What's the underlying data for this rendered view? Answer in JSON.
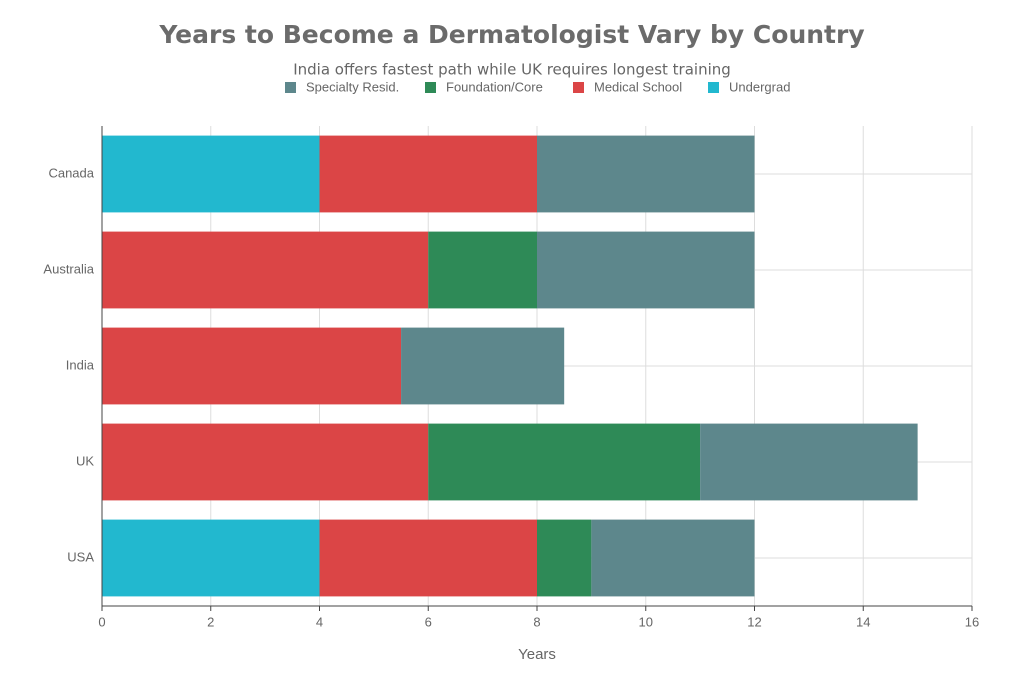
{
  "chart_data": {
    "type": "stacked_bar_horizontal",
    "title": "Years to Become a Dermatologist Vary by Country",
    "subtitle": "India offers fastest path while UK requires longest training",
    "x_label": "Years",
    "categories": [
      "USA",
      "UK",
      "India",
      "Australia",
      "Canada"
    ],
    "series": [
      {
        "name": "Specialty Resid.",
        "color": "#5d878c",
        "values": [
          3,
          4,
          3,
          4,
          4
        ]
      },
      {
        "name": "Foundation/Core",
        "color": "#2e8a57",
        "values": [
          1,
          5,
          0,
          2,
          0
        ]
      },
      {
        "name": "Medical School",
        "color": "#db4546",
        "values": [
          4,
          6,
          5.5,
          6,
          4
        ]
      },
      {
        "name": "Undergrad",
        "color": "#22b8cf",
        "values": [
          4,
          0,
          0,
          0,
          4
        ]
      }
    ],
    "xlim": [
      0,
      16
    ],
    "xticks": [
      0,
      2,
      4,
      6,
      8,
      10,
      12,
      14,
      16
    ],
    "grid": true
  }
}
